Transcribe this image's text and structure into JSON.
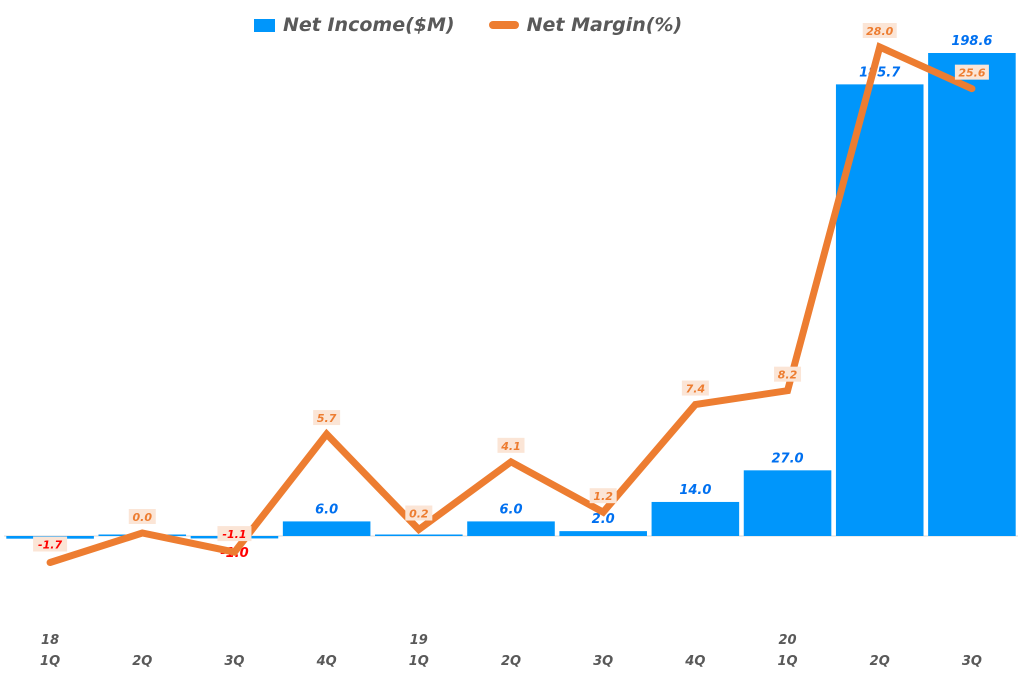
{
  "legend": {
    "bar_label": "Net Income($M)",
    "line_label": "Net Margin(%)"
  },
  "colors": {
    "bar": "#0096fb",
    "line": "#ed7d31",
    "bar_label": "#0070f0",
    "line_label_bg": "#fbe5d6",
    "negative": "#ff0000"
  },
  "x_axis": {
    "years": [
      {
        "label": "18",
        "index": 0
      },
      {
        "label": "19",
        "index": 4
      },
      {
        "label": "20",
        "index": 8
      }
    ],
    "quarters": [
      "1Q",
      "2Q",
      "3Q",
      "4Q",
      "1Q",
      "2Q",
      "3Q",
      "4Q",
      "1Q",
      "2Q",
      "3Q"
    ]
  },
  "chart_data": {
    "type": "bar",
    "title": "",
    "categories": [
      "18 1Q",
      "18 2Q",
      "18 3Q",
      "18 4Q",
      "19 1Q",
      "19 2Q",
      "19 3Q",
      "19 4Q",
      "20 1Q",
      "20 2Q",
      "20 3Q"
    ],
    "series": [
      {
        "name": "Net Income($M)",
        "type": "bar",
        "values": [
          -1.1,
          0.0,
          -1.0,
          6.0,
          0.3,
          6.0,
          2.0,
          14.0,
          27.0,
          185.7,
          198.6
        ],
        "labels": [
          "",
          "",
          "-1.0",
          "6.0",
          "",
          "6.0",
          "2.0",
          "14.0",
          "27.0",
          "185.7",
          "198.6"
        ]
      },
      {
        "name": "Net Margin(%)",
        "type": "line",
        "values": [
          -1.7,
          0.0,
          -1.1,
          5.7,
          0.2,
          4.1,
          1.2,
          7.4,
          8.2,
          28.0,
          25.6
        ],
        "labels": [
          "-1.7",
          "0.0",
          "-1.1",
          "5.7",
          "0.2",
          "4.1",
          "1.2",
          "7.4",
          "8.2",
          "28.0",
          "25.6"
        ]
      }
    ],
    "xlabel": "",
    "ylabel": "",
    "legend_position": "top",
    "grid": false,
    "notes": "Dual axis: bars on primary axis, line on secondary axis; values for 1Q18 and 1Q19 bars are obscured by overlapping labels"
  }
}
